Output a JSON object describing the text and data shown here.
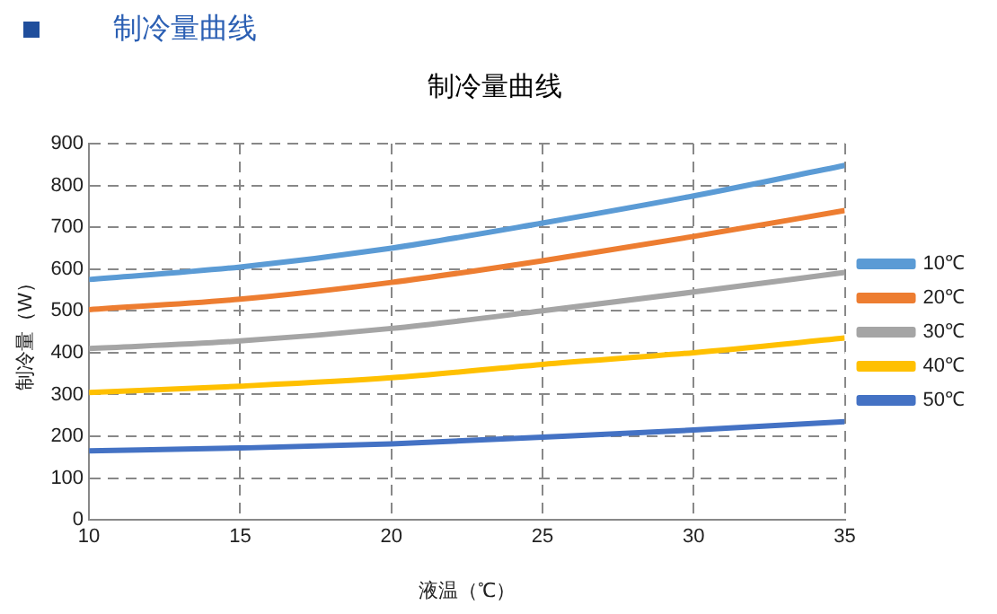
{
  "chart_data": {
    "type": "line",
    "title": "制冷量曲线",
    "subtitle": "制冷量曲线",
    "xlabel": "液温（℃）",
    "ylabel": "制冷量（W）",
    "x": [
      10,
      15,
      20,
      25,
      30,
      35
    ],
    "series": [
      {
        "name": "10℃",
        "color": "#5b9bd5",
        "values": [
          575,
          605,
          650,
          710,
          775,
          848
        ]
      },
      {
        "name": "20℃",
        "color": "#ed7d31",
        "values": [
          503,
          528,
          568,
          620,
          678,
          740
        ]
      },
      {
        "name": "30℃",
        "color": "#a5a5a5",
        "values": [
          410,
          428,
          458,
          500,
          545,
          592
        ]
      },
      {
        "name": "40℃",
        "color": "#ffc000",
        "values": [
          305,
          320,
          340,
          372,
          400,
          435
        ]
      },
      {
        "name": "50℃",
        "color": "#4472c4",
        "values": [
          165,
          172,
          182,
          198,
          215,
          235
        ]
      }
    ],
    "xlim": [
      10,
      35
    ],
    "xticks": [
      10,
      15,
      20,
      25,
      30,
      35
    ],
    "ylim": [
      0,
      900
    ],
    "yticks": [
      0,
      100,
      200,
      300,
      400,
      500,
      600,
      700,
      800,
      900
    ],
    "grid": true,
    "legend": "right",
    "marker": "none",
    "line_style": "solid"
  }
}
